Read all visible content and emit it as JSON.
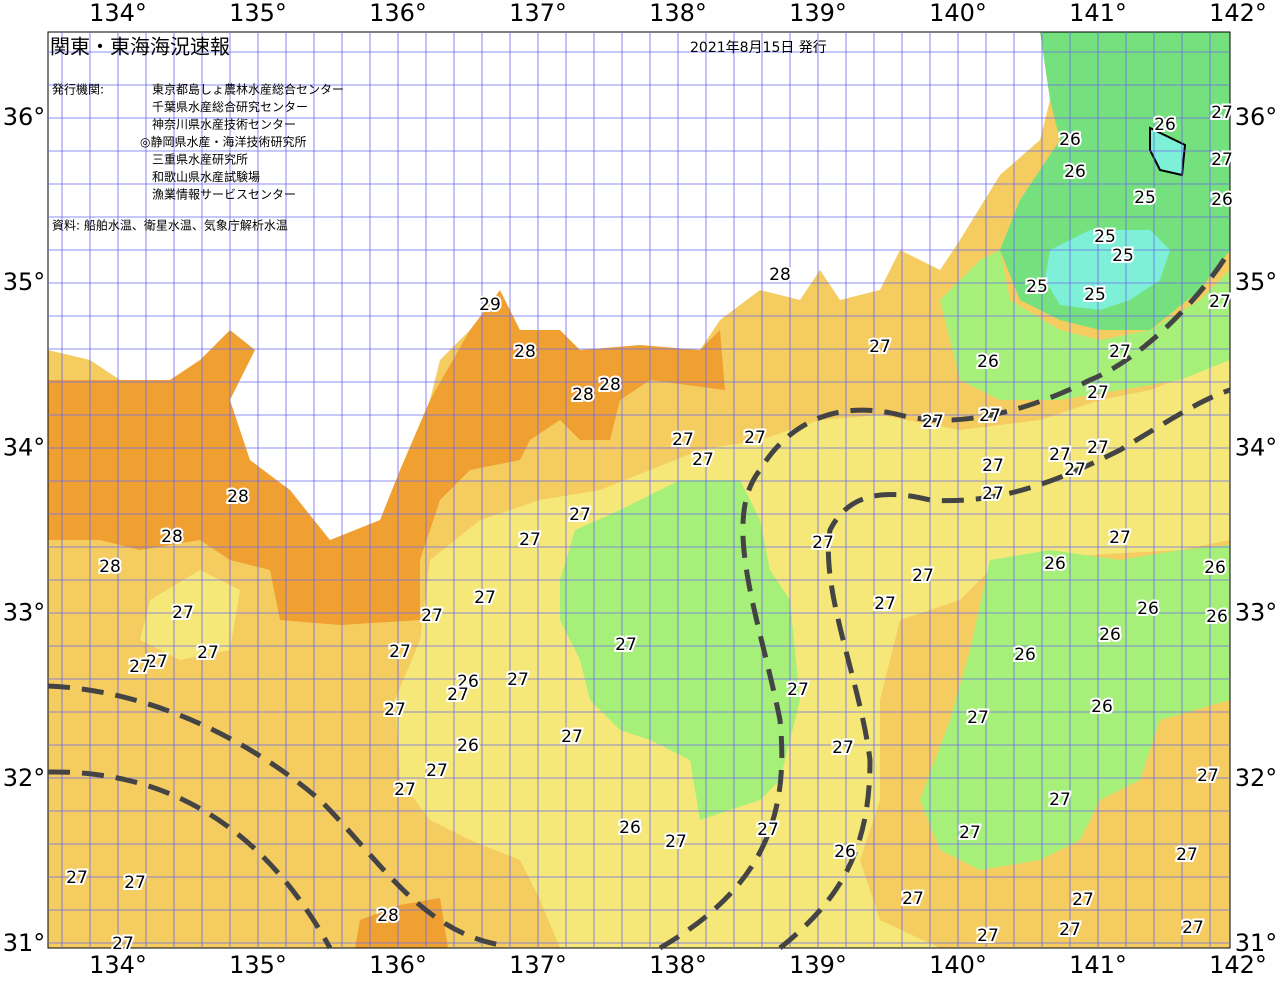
{
  "header": {
    "title": "関東・東海海況速報",
    "issue_date": "2021年8月15日 発行",
    "issuer_heading": "発行機関:",
    "issuers": [
      "東京都島しょ農林水産総合センター",
      "千葉県水産総合研究センター",
      "神奈川県水産技術センター",
      "◎静岡県水産・海洋技術研究所",
      "三重県水産研究所",
      "和歌山県水産試験場",
      "漁業情報サービスセンター"
    ],
    "source": "資料: 船舶水温、衛星水温、気象庁解析水温"
  },
  "map": {
    "lon_labels": [
      "134°",
      "135°",
      "136°",
      "137°",
      "138°",
      "139°",
      "140°",
      "141°",
      "142°"
    ],
    "lat_labels": [
      "36°",
      "35°",
      "34°",
      "33°",
      "32°",
      "31°"
    ],
    "temperature_labels": [
      "26",
      "26",
      "27",
      "26",
      "27",
      "25",
      "26",
      "25",
      "25",
      "25",
      "25",
      "27",
      "28",
      "29",
      "28",
      "28",
      "28",
      "27",
      "26",
      "27",
      "27",
      "27",
      "27",
      "27",
      "27",
      "27",
      "27",
      "27",
      "27",
      "27",
      "27",
      "28",
      "28",
      "28",
      "27",
      "27",
      "27",
      "27",
      "26",
      "26",
      "27",
      "27",
      "27",
      "26",
      "26",
      "27",
      "27",
      "26",
      "27",
      "27",
      "27",
      "27",
      "26",
      "26",
      "27",
      "27",
      "27",
      "27",
      "27",
      "26",
      "26",
      "27",
      "27",
      "27",
      "27",
      "27",
      "27",
      "26",
      "27",
      "27",
      "27",
      "26",
      "27",
      "27",
      "27",
      "27",
      "27",
      "27",
      "27",
      "27",
      "28",
      "27",
      "27"
    ]
  }
}
